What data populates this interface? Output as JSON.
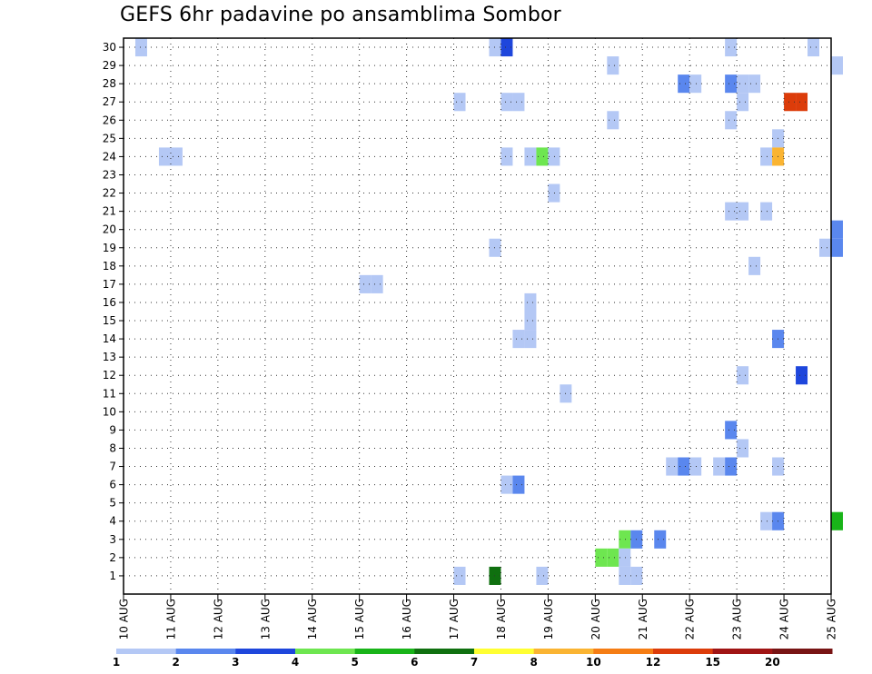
{
  "chart_data": {
    "type": "heatmap",
    "title": "GEFS 6hr padavine po ansamblima Sombor",
    "xlabel": "",
    "ylabel": "",
    "x_tick_labels": [
      "10 AUG",
      "11 AUG",
      "12 AUG",
      "13 AUG",
      "14 AUG",
      "15 AUG",
      "16 AUG",
      "17 AUG",
      "18 AUG",
      "19 AUG",
      "20 AUG",
      "21 AUG",
      "22 AUG",
      "23 AUG",
      "24 AUG",
      "25 AUG"
    ],
    "x_range_days": [
      0,
      15
    ],
    "y_tick_labels": [
      "1",
      "2",
      "3",
      "4",
      "5",
      "6",
      "7",
      "8",
      "9",
      "10",
      "11",
      "12",
      "13",
      "14",
      "15",
      "16",
      "17",
      "18",
      "19",
      "20",
      "21",
      "22",
      "23",
      "24",
      "25",
      "26",
      "27",
      "28",
      "29",
      "30"
    ],
    "y_range": [
      0,
      30.5
    ],
    "grid": true,
    "legend": {
      "placement": "bottom",
      "labels": [
        "1",
        "2",
        "3",
        "4",
        "5",
        "6",
        "7",
        "8",
        "10",
        "12",
        "15",
        "20"
      ],
      "colors": [
        "#b4c8f5",
        "#5a87ee",
        "#1e46dc",
        "#6ee650",
        "#19b419",
        "#0f700f",
        "#ffff32",
        "#fab432",
        "#f57d14",
        "#dc3c0a",
        "#a01414",
        "#781414"
      ]
    },
    "cells": [
      {
        "t": 0.25,
        "m": 30,
        "c": 0
      },
      {
        "t": 7.75,
        "m": 30,
        "c": 0
      },
      {
        "t": 8.0,
        "m": 30,
        "c": 2
      },
      {
        "t": 12.75,
        "m": 30,
        "c": 0
      },
      {
        "t": 14.5,
        "m": 30,
        "c": 0
      },
      {
        "t": 10.25,
        "m": 29,
        "c": 0
      },
      {
        "t": 15.0,
        "m": 29,
        "c": 0
      },
      {
        "t": 11.75,
        "m": 28,
        "c": 1
      },
      {
        "t": 12.0,
        "m": 28,
        "c": 0
      },
      {
        "t": 12.75,
        "m": 28,
        "c": 1
      },
      {
        "t": 13.0,
        "m": 28,
        "c": 0
      },
      {
        "t": 13.25,
        "m": 28,
        "c": 0
      },
      {
        "t": 7.0,
        "m": 27,
        "c": 0
      },
      {
        "t": 8.0,
        "m": 27,
        "c": 0
      },
      {
        "t": 8.25,
        "m": 27,
        "c": 0
      },
      {
        "t": 13.0,
        "m": 27,
        "c": 0
      },
      {
        "t": 14.0,
        "m": 27,
        "c": 9
      },
      {
        "t": 14.25,
        "m": 27,
        "c": 9
      },
      {
        "t": 10.25,
        "m": 26,
        "c": 0
      },
      {
        "t": 12.75,
        "m": 26,
        "c": 0
      },
      {
        "t": 13.75,
        "m": 25,
        "c": 0
      },
      {
        "t": 0.75,
        "m": 24,
        "c": 0
      },
      {
        "t": 1.0,
        "m": 24,
        "c": 0
      },
      {
        "t": 8.0,
        "m": 24,
        "c": 0
      },
      {
        "t": 8.5,
        "m": 24,
        "c": 0
      },
      {
        "t": 8.75,
        "m": 24,
        "c": 3
      },
      {
        "t": 9.0,
        "m": 24,
        "c": 0
      },
      {
        "t": 13.5,
        "m": 24,
        "c": 0
      },
      {
        "t": 13.75,
        "m": 24,
        "c": 7
      },
      {
        "t": 9.0,
        "m": 22,
        "c": 0
      },
      {
        "t": 12.75,
        "m": 21,
        "c": 0
      },
      {
        "t": 13.0,
        "m": 21,
        "c": 0
      },
      {
        "t": 13.5,
        "m": 21,
        "c": 0
      },
      {
        "t": 15.0,
        "m": 20,
        "c": 1
      },
      {
        "t": 7.75,
        "m": 19,
        "c": 0
      },
      {
        "t": 14.75,
        "m": 19,
        "c": 0
      },
      {
        "t": 15.0,
        "m": 19,
        "c": 1
      },
      {
        "t": 13.25,
        "m": 18,
        "c": 0
      },
      {
        "t": 5.0,
        "m": 17,
        "c": 0
      },
      {
        "t": 5.25,
        "m": 17,
        "c": 0
      },
      {
        "t": 8.5,
        "m": 16,
        "c": 0
      },
      {
        "t": 8.5,
        "m": 15,
        "c": 0
      },
      {
        "t": 8.25,
        "m": 14,
        "c": 0
      },
      {
        "t": 8.5,
        "m": 14,
        "c": 0
      },
      {
        "t": 13.75,
        "m": 14,
        "c": 1
      },
      {
        "t": 13.0,
        "m": 12,
        "c": 0
      },
      {
        "t": 14.25,
        "m": 12,
        "c": 2
      },
      {
        "t": 9.25,
        "m": 11,
        "c": 0
      },
      {
        "t": 12.75,
        "m": 9,
        "c": 1
      },
      {
        "t": 13.0,
        "m": 8,
        "c": 0
      },
      {
        "t": 11.5,
        "m": 7,
        "c": 0
      },
      {
        "t": 11.75,
        "m": 7,
        "c": 1
      },
      {
        "t": 12.0,
        "m": 7,
        "c": 0
      },
      {
        "t": 12.5,
        "m": 7,
        "c": 0
      },
      {
        "t": 12.75,
        "m": 7,
        "c": 1
      },
      {
        "t": 13.75,
        "m": 7,
        "c": 0
      },
      {
        "t": 8.0,
        "m": 6,
        "c": 0
      },
      {
        "t": 8.25,
        "m": 6,
        "c": 1
      },
      {
        "t": 13.5,
        "m": 4,
        "c": 0
      },
      {
        "t": 13.75,
        "m": 4,
        "c": 1
      },
      {
        "t": 15.0,
        "m": 4,
        "c": 4
      },
      {
        "t": 10.5,
        "m": 3,
        "c": 3
      },
      {
        "t": 10.75,
        "m": 3,
        "c": 1
      },
      {
        "t": 11.25,
        "m": 3,
        "c": 1
      },
      {
        "t": 10.0,
        "m": 2,
        "c": 3
      },
      {
        "t": 10.25,
        "m": 2,
        "c": 3
      },
      {
        "t": 10.5,
        "m": 2,
        "c": 0
      },
      {
        "t": 7.0,
        "m": 1,
        "c": 0
      },
      {
        "t": 7.75,
        "m": 1,
        "c": 5
      },
      {
        "t": 8.75,
        "m": 1,
        "c": 0
      },
      {
        "t": 10.5,
        "m": 1,
        "c": 0
      },
      {
        "t": 10.75,
        "m": 1,
        "c": 0
      }
    ]
  }
}
